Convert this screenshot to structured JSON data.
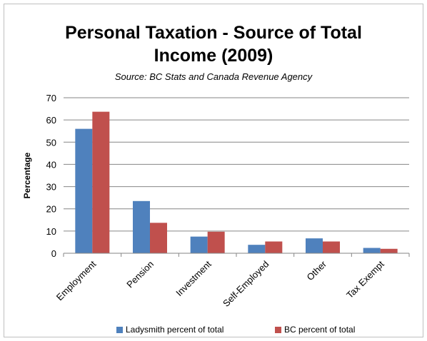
{
  "chart_data": {
    "type": "bar",
    "title_line1": "Personal Taxation - Source of Total",
    "title_line2": "Income (2009)",
    "subtitle": "Source: BC Stats and Canada Revenue Agency",
    "ylabel": "Percentage",
    "xlabel": "",
    "ylim": [
      0,
      70
    ],
    "yticks": [
      "0",
      "10",
      "20",
      "30",
      "40",
      "50",
      "60",
      "70"
    ],
    "grid": "horizontal",
    "legend_position": "bottom",
    "categories": [
      "Employment",
      "Pension",
      "Investment",
      "Self-Employed",
      "Other",
      "Tax Exempt"
    ],
    "series": [
      {
        "name": "Ladysmith percent of total",
        "color": "#4f81bd",
        "values": [
          56,
          23.5,
          7.5,
          3.8,
          6.7,
          2.4
        ]
      },
      {
        "name": "BC percent of total",
        "color": "#c0504d",
        "values": [
          63.7,
          13.7,
          9.7,
          5.3,
          5.3,
          2.0
        ]
      }
    ]
  }
}
